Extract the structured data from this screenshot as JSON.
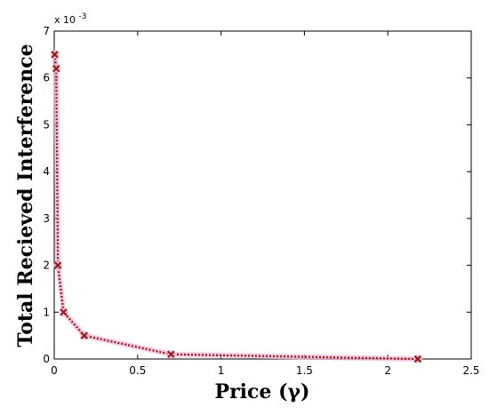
{
  "chart_data": {
    "type": "line",
    "xlabel": "Price (γ)",
    "ylabel": "Total Recieved Interference",
    "y_exponent_label": "x 10",
    "y_exponent_power": "-3",
    "xlim": [
      0,
      2.5
    ],
    "ylim": [
      0,
      7
    ],
    "x_ticks": [
      "0",
      "0.5",
      "1",
      "1.5",
      "2",
      "2.5"
    ],
    "y_ticks": [
      "0",
      "1",
      "2",
      "3",
      "4",
      "5",
      "6",
      "7"
    ],
    "grid": false,
    "series": [
      {
        "marker": "x",
        "line_style": "dotted",
        "color": "#8b1a10",
        "glow_color": "#f6b4d6",
        "x": [
          0.003,
          0.012,
          0.022,
          0.056,
          0.18,
          0.7,
          2.18
        ],
        "y": [
          6.5,
          6.2,
          2.0,
          1.0,
          0.5,
          0.1,
          0.0
        ]
      }
    ]
  }
}
